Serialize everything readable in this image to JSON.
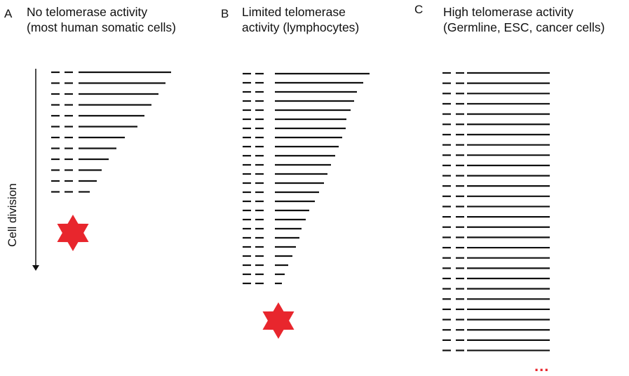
{
  "panels": [
    {
      "letter": "A",
      "title_line1": "No telomerase activity",
      "title_line2": "(most human somatic cells)"
    },
    {
      "letter": "B",
      "title_line1": "Limited telomerase",
      "title_line2": "activity (lymphocytes)"
    },
    {
      "letter": "C",
      "title_line1": "High telomerase activity",
      "title_line2": "(Germline, ESC, cancer cells)"
    }
  ],
  "axis_label": "Cell division",
  "continuation": "...",
  "colors": {
    "line": "#111111",
    "star": "#e8262d",
    "continuation": "#e8262d"
  }
}
